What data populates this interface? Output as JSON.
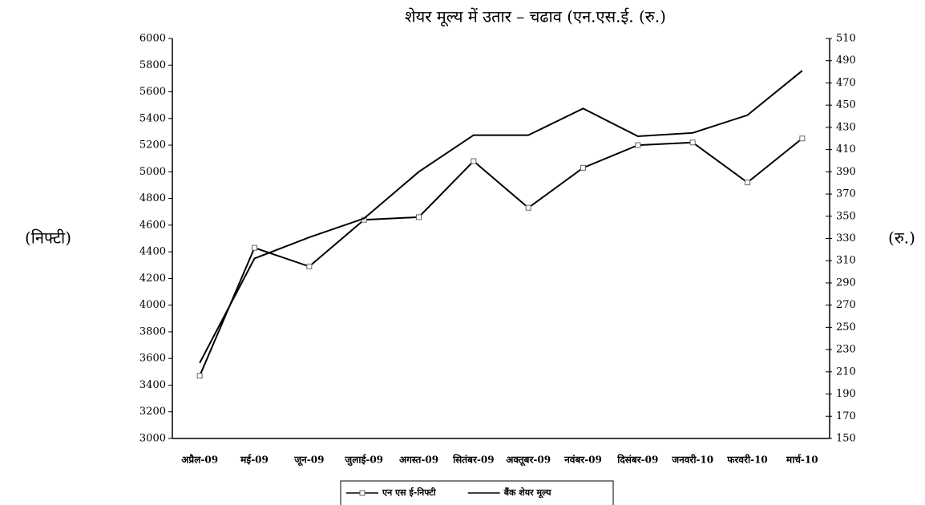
{
  "chart_data": {
    "type": "line",
    "title": "शेयर मूल्य में उतार – चढाव (एन.एस.ई. (रु.)",
    "y_label": "(निफ्टी)",
    "y2_label": "(रु.)",
    "categories": [
      "अप्रैल-09",
      "मई-09",
      "जून-09",
      "जुलाई-09",
      "अगस्त-09",
      "सितंबर-09",
      "अक्तूबर-09",
      "नवंबर-09",
      "दिसंबर-09",
      "जनवरी-10",
      "फरवरी-10",
      "मार्च-10"
    ],
    "series": [
      {
        "name": "एन एस ई-निफ्टी",
        "color": "#000000",
        "marker": "square",
        "values": [
          3470,
          4430,
          4290,
          4640,
          4660,
          5080,
          4730,
          5030,
          5200,
          5220,
          4920,
          5250
        ]
      },
      {
        "name": "बैंक शेयर मूल्य",
        "color": "#000000",
        "axis": "y2",
        "values": [
          218,
          312,
          331,
          348,
          390,
          423,
          423,
          447,
          422,
          425,
          441,
          481
        ]
      }
    ],
    "ylim": [
      3000,
      6000
    ],
    "yticks": [
      3000,
      3200,
      3400,
      3600,
      3800,
      4000,
      4200,
      4400,
      4600,
      4800,
      5000,
      5200,
      5400,
      5600,
      5800,
      6000
    ],
    "y2lim": [
      150,
      510
    ],
    "y2ticks": [
      150,
      170,
      190,
      210,
      230,
      250,
      270,
      290,
      310,
      330,
      350,
      370,
      390,
      410,
      430,
      450,
      470,
      490,
      510
    ],
    "grid": false,
    "legend": "bottom"
  }
}
